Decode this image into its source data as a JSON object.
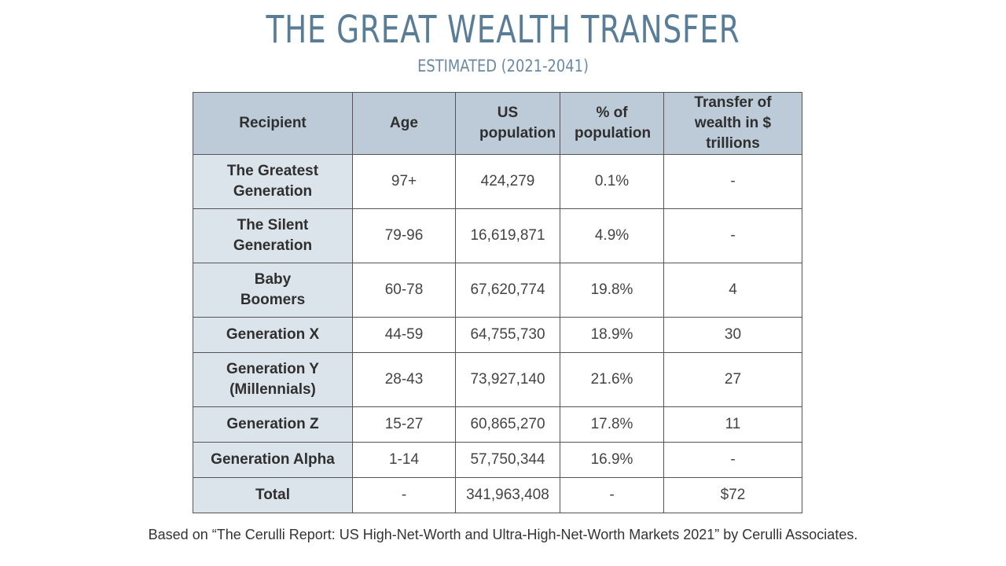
{
  "title": "THE GREAT WEALTH TRANSFER",
  "subtitle": "ESTIMATED (2021-2041)",
  "table": {
    "headers": [
      "Recipient",
      "Age",
      "US population",
      "% of population",
      "Transfer of wealth in $ trillions"
    ],
    "rows": [
      [
        "The Greatest Generation",
        "97+",
        "424,279",
        "0.1%",
        "-"
      ],
      [
        "The Silent Generation",
        "79-96",
        "16,619,871",
        "4.9%",
        "-"
      ],
      [
        "Baby Boomers",
        "60-78",
        "67,620,774",
        "19.8%",
        "4"
      ],
      [
        "Generation X",
        "44-59",
        "64,755,730",
        "18.9%",
        "30"
      ],
      [
        "Generation Y (Millennials)",
        "28-43",
        "73,927,140",
        "21.6%",
        "27"
      ],
      [
        "Generation Z",
        "15-27",
        "60,865,270",
        "17.8%",
        "11"
      ],
      [
        "Generation Alpha",
        "1-14",
        "57,750,344",
        "16.9%",
        "-"
      ],
      [
        "Total",
        "-",
        "341,963,408",
        "-",
        "$72"
      ]
    ]
  },
  "footnote": "Based on “The Cerulli Report: US High-Net-Worth and Ultra-High-Net-Worth Markets 2021” by Cerulli Associates."
}
